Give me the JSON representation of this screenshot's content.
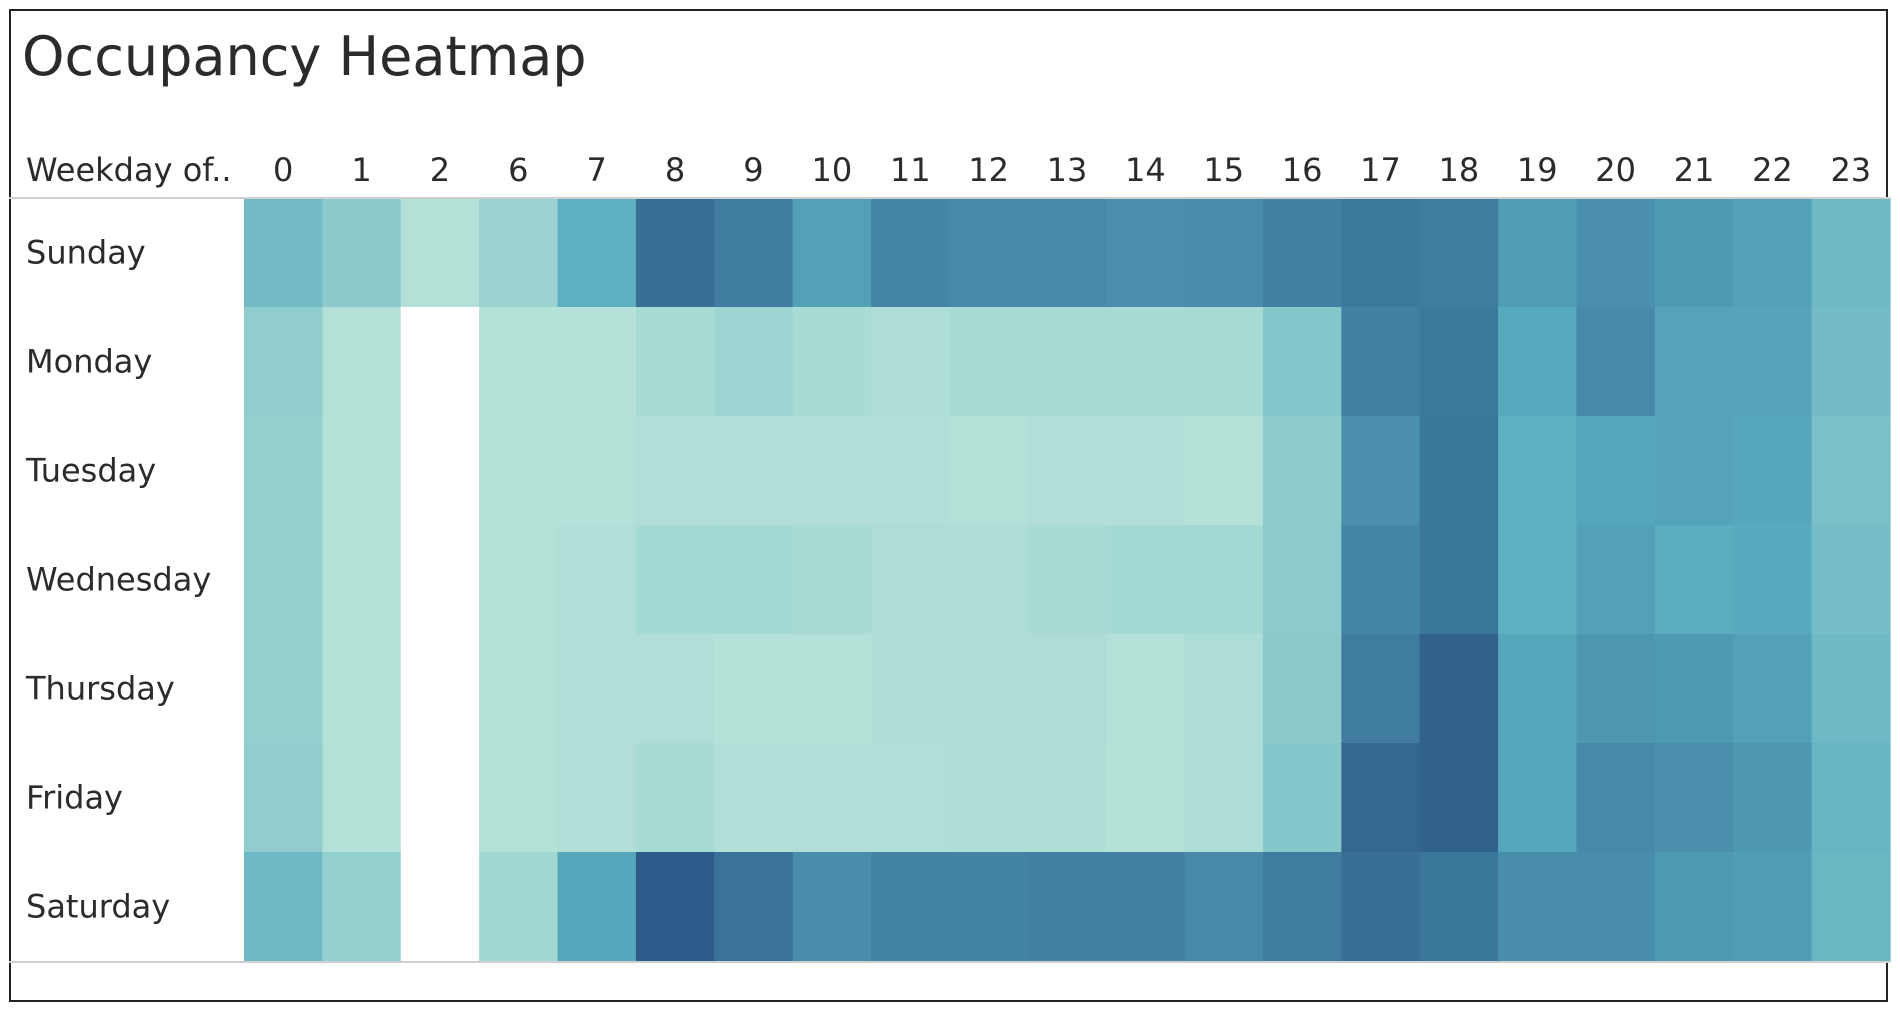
{
  "chart_data": {
    "type": "heatmap",
    "title": "Occupancy Heatmap",
    "row_header": "Weekday of..",
    "columns": [
      "0",
      "1",
      "2",
      "6",
      "7",
      "8",
      "9",
      "10",
      "11",
      "12",
      "13",
      "14",
      "15",
      "16",
      "17",
      "18",
      "19",
      "20",
      "21",
      "22",
      "23"
    ],
    "rows": [
      "Sunday",
      "Monday",
      "Tuesday",
      "Wednesday",
      "Thursday",
      "Friday",
      "Saturday"
    ],
    "values": [
      [
        0.38,
        0.25,
        0.05,
        0.18,
        0.48,
        0.88,
        0.8,
        0.58,
        0.74,
        0.72,
        0.72,
        0.68,
        0.7,
        0.78,
        0.82,
        0.8,
        0.6,
        0.68,
        0.62,
        0.58,
        0.4
      ],
      [
        0.22,
        0.05,
        null,
        0.05,
        0.04,
        0.1,
        0.16,
        0.1,
        0.07,
        0.1,
        0.1,
        0.1,
        0.1,
        0.28,
        0.78,
        0.82,
        0.52,
        0.72,
        0.56,
        0.56,
        0.38
      ],
      [
        0.2,
        0.05,
        null,
        0.05,
        0.04,
        0.06,
        0.06,
        0.06,
        0.06,
        0.04,
        0.06,
        0.06,
        0.04,
        0.24,
        0.68,
        0.84,
        0.48,
        0.54,
        0.56,
        0.54,
        0.34
      ],
      [
        0.2,
        0.05,
        null,
        0.05,
        0.06,
        0.12,
        0.12,
        0.1,
        0.08,
        0.08,
        0.1,
        0.12,
        0.12,
        0.24,
        0.74,
        0.84,
        0.48,
        0.58,
        0.5,
        0.52,
        0.36
      ],
      [
        0.2,
        0.05,
        null,
        0.05,
        0.06,
        0.06,
        0.04,
        0.04,
        0.07,
        0.08,
        0.08,
        0.05,
        0.08,
        0.26,
        0.8,
        0.96,
        0.54,
        0.64,
        0.62,
        0.58,
        0.4
      ],
      [
        0.22,
        0.05,
        null,
        0.05,
        0.06,
        0.1,
        0.06,
        0.06,
        0.06,
        0.07,
        0.07,
        0.04,
        0.08,
        0.28,
        0.92,
        0.96,
        0.54,
        0.72,
        0.68,
        0.64,
        0.44
      ],
      [
        0.4,
        0.2,
        null,
        0.14,
        0.54,
        1.0,
        0.86,
        0.7,
        0.76,
        0.76,
        0.78,
        0.78,
        0.72,
        0.8,
        0.88,
        0.84,
        0.7,
        0.7,
        0.62,
        0.6,
        0.42
      ]
    ],
    "empty_cell_color": "#ffffff",
    "color_scale": [
      "#bde6da",
      "#5aaec0",
      "#2d5b8a"
    ],
    "legend": "none",
    "grid": false
  }
}
